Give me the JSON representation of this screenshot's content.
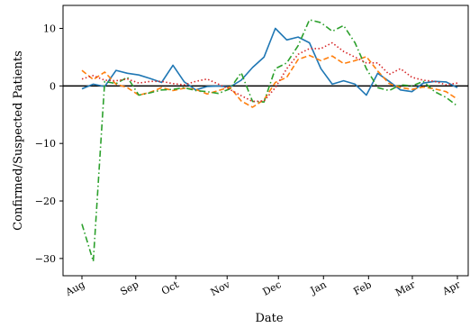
{
  "chart_data": {
    "type": "line",
    "xlabel": "Date",
    "ylabel": "Confirmed/Suspected Patients",
    "xlim": [
      0,
      30
    ],
    "ylim": [
      -33,
      14
    ],
    "x_ticks": [
      {
        "pos": 0,
        "label": "Aug"
      },
      {
        "pos": 4.3,
        "label": "Sep"
      },
      {
        "pos": 7.5,
        "label": "Oct"
      },
      {
        "pos": 11.6,
        "label": "Nov"
      },
      {
        "pos": 15.7,
        "label": "Dec"
      },
      {
        "pos": 19.3,
        "label": "Jan"
      },
      {
        "pos": 22.9,
        "label": "Feb"
      },
      {
        "pos": 26.4,
        "label": "Mar"
      },
      {
        "pos": 30,
        "label": "Apr"
      }
    ],
    "y_ticks": [
      10,
      0,
      -10,
      -20,
      -30
    ],
    "y_tick_labels": [
      "10",
      "0",
      "−10",
      "−20",
      "−30"
    ],
    "zero_line": true,
    "series": [
      {
        "color": "#1f77b4",
        "style": "solid",
        "values": [
          -0.5,
          0.3,
          -0.1,
          2.7,
          2.2,
          1.9,
          1.3,
          0.6,
          3.6,
          0.7,
          -0.7,
          -0.1,
          0.0,
          -0.2,
          1.0,
          3.2,
          5.0,
          10.0,
          8.0,
          8.5,
          7.5,
          3.0,
          0.3,
          0.9,
          0.3,
          -1.6,
          2.2,
          0.8,
          -0.7,
          -1.0,
          0.5,
          0.8,
          0.7,
          -0.3
        ]
      },
      {
        "color": "#ff7f0e",
        "style": "dashed",
        "values": [
          2.7,
          1.1,
          2.4,
          0.3,
          -0.3,
          -1.6,
          -1.1,
          -0.3,
          -0.8,
          -0.4,
          -0.6,
          -1.4,
          -0.8,
          -0.2,
          -2.6,
          -3.7,
          -2.4,
          0.6,
          1.5,
          4.6,
          5.3,
          4.4,
          5.2,
          3.9,
          4.4,
          5.1,
          2.6,
          0.4,
          -0.3,
          -0.6,
          -0.2,
          -0.5,
          -1.0,
          -2.3
        ]
      },
      {
        "color": "#2ca02c",
        "style": "dashdot",
        "values": [
          -24.0,
          -30.5,
          0.8,
          0.4,
          1.5,
          -1.6,
          -1.2,
          -0.7,
          -0.6,
          -0.3,
          -0.8,
          -1.0,
          -1.3,
          -0.5,
          2.3,
          -2.7,
          -2.8,
          3.0,
          4.0,
          7.0,
          11.5,
          11.0,
          9.5,
          10.5,
          7.5,
          3.0,
          -0.3,
          -0.8,
          0.2,
          0.0,
          0.8,
          -1.0,
          -2.0,
          -3.5
        ]
      },
      {
        "color": "#d62728",
        "style": "dotted",
        "values": [
          1.2,
          1.8,
          1.0,
          0.9,
          1.2,
          0.5,
          0.8,
          0.8,
          0.4,
          0.2,
          0.8,
          1.2,
          0.3,
          -0.6,
          -1.7,
          -2.7,
          -2.6,
          -0.3,
          3.0,
          5.5,
          6.5,
          6.5,
          7.5,
          6.0,
          5.0,
          4.0,
          4.0,
          2.0,
          3.0,
          1.5,
          1.0,
          0.8,
          0.2,
          0.5
        ]
      }
    ]
  }
}
